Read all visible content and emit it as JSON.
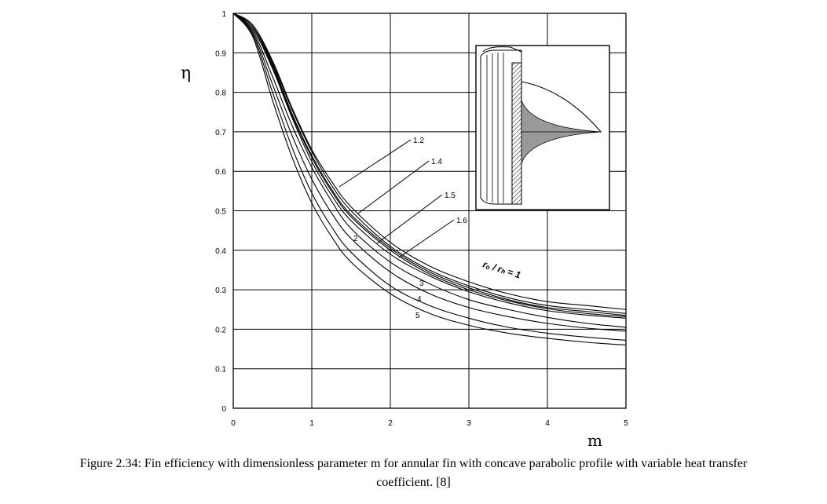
{
  "chart_data": {
    "type": "line",
    "title": "",
    "xlabel": "m",
    "ylabel": "η",
    "xlim": [
      0,
      5
    ],
    "ylim": [
      0,
      1
    ],
    "grid": true,
    "x_ticks": [
      "0",
      "1",
      "2",
      "3",
      "4",
      "5"
    ],
    "y_ticks": [
      "0",
      "0.1",
      "0.2",
      "0.3",
      "0.4",
      "0.5",
      "0.6",
      "0.7",
      "0.8",
      "0.9",
      "1"
    ],
    "parameter_label": "rₒ / rₕ = 1",
    "curve_labels": [
      "1.2",
      "1.4",
      "1.5",
      "1.6",
      "2",
      "3",
      "4",
      "5"
    ],
    "series": [
      {
        "name": "1",
        "x": [
          0,
          0.25,
          0.5,
          0.75,
          1.0,
          1.25,
          1.5,
          2.0,
          2.5,
          3.0,
          3.5,
          4.0,
          4.5,
          5.0
        ],
        "values": [
          1.0,
          0.97,
          0.88,
          0.76,
          0.655,
          0.575,
          0.51,
          0.42,
          0.36,
          0.32,
          0.29,
          0.27,
          0.26,
          0.25
        ]
      },
      {
        "name": "1.2",
        "x": [
          0,
          0.25,
          0.5,
          0.75,
          1.0,
          1.25,
          1.5,
          2.0,
          2.5,
          3.0,
          3.5,
          4.0,
          4.5,
          5.0
        ],
        "values": [
          1.0,
          0.97,
          0.875,
          0.755,
          0.65,
          0.565,
          0.5,
          0.41,
          0.35,
          0.31,
          0.28,
          0.26,
          0.25,
          0.24
        ]
      },
      {
        "name": "1.4",
        "x": [
          0,
          0.25,
          0.5,
          0.75,
          1.0,
          1.25,
          1.5,
          2.0,
          2.5,
          3.0,
          3.5,
          4.0,
          4.5,
          5.0
        ],
        "values": [
          1.0,
          0.965,
          0.87,
          0.745,
          0.64,
          0.555,
          0.49,
          0.405,
          0.345,
          0.305,
          0.275,
          0.255,
          0.245,
          0.235
        ]
      },
      {
        "name": "1.5",
        "x": [
          0,
          0.25,
          0.5,
          0.75,
          1.0,
          1.25,
          1.5,
          2.0,
          2.5,
          3.0,
          3.5,
          4.0,
          4.5,
          5.0
        ],
        "values": [
          1.0,
          0.965,
          0.865,
          0.74,
          0.635,
          0.55,
          0.485,
          0.4,
          0.34,
          0.3,
          0.272,
          0.252,
          0.24,
          0.232
        ]
      },
      {
        "name": "1.6",
        "x": [
          0,
          0.25,
          0.5,
          0.75,
          1.0,
          1.25,
          1.5,
          2.0,
          2.5,
          3.0,
          3.5,
          4.0,
          4.5,
          5.0
        ],
        "values": [
          1.0,
          0.96,
          0.86,
          0.735,
          0.625,
          0.54,
          0.475,
          0.39,
          0.335,
          0.295,
          0.267,
          0.247,
          0.236,
          0.228
        ]
      },
      {
        "name": "2",
        "x": [
          0,
          0.25,
          0.5,
          0.75,
          1.0,
          1.25,
          1.5,
          2.0,
          2.5,
          3.0,
          3.5,
          4.0,
          4.5,
          5.0
        ],
        "values": [
          1.0,
          0.955,
          0.84,
          0.715,
          0.61,
          0.525,
          0.455,
          0.37,
          0.315,
          0.275,
          0.25,
          0.23,
          0.215,
          0.205
        ]
      },
      {
        "name": "3",
        "x": [
          0,
          0.25,
          0.5,
          0.75,
          1.0,
          1.25,
          1.5,
          2.0,
          2.5,
          3.0,
          3.5,
          4.0,
          4.5,
          5.0
        ],
        "values": [
          1.0,
          0.95,
          0.82,
          0.69,
          0.58,
          0.495,
          0.43,
          0.345,
          0.29,
          0.255,
          0.232,
          0.215,
          0.203,
          0.195
        ]
      },
      {
        "name": "4",
        "x": [
          0,
          0.25,
          0.5,
          0.75,
          1.0,
          1.25,
          1.5,
          2.0,
          2.5,
          3.0,
          3.5,
          4.0,
          4.5,
          5.0
        ],
        "values": [
          1.0,
          0.945,
          0.8,
          0.66,
          0.545,
          0.46,
          0.395,
          0.31,
          0.26,
          0.228,
          0.205,
          0.19,
          0.18,
          0.172
        ]
      },
      {
        "name": "5",
        "x": [
          0,
          0.25,
          0.5,
          0.75,
          1.0,
          1.25,
          1.5,
          2.0,
          2.5,
          3.0,
          3.5,
          4.0,
          4.5,
          5.0
        ],
        "values": [
          1.0,
          0.94,
          0.78,
          0.635,
          0.52,
          0.435,
          0.37,
          0.29,
          0.24,
          0.21,
          0.19,
          0.177,
          0.167,
          0.16
        ]
      }
    ]
  },
  "caption": {
    "line1": "Figure 2.34: Fin efficiency with dimensionless parameter m for annular fin with concave parabolic profile with variable heat transfer",
    "line2": "coefficient. [8]"
  }
}
